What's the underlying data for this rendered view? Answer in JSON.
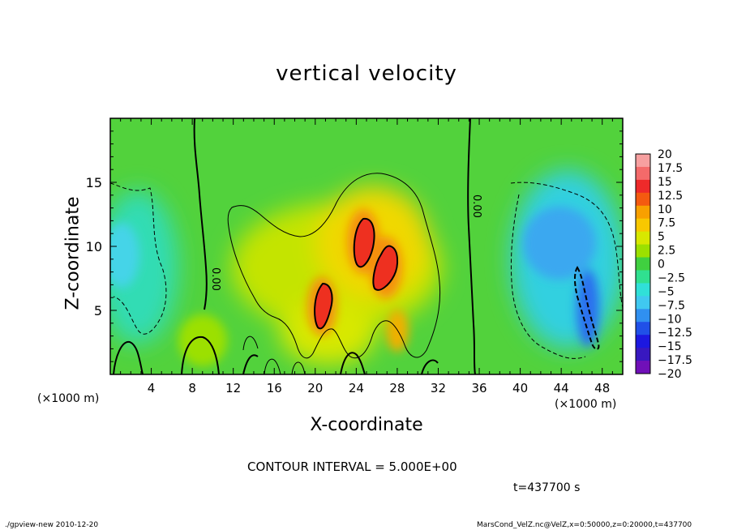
{
  "chart_data": {
    "type": "heatmap",
    "title": "vertical velocity",
    "xlabel": "X-coordinate",
    "ylabel": "Z-coordinate",
    "x_unit": "(×1000 m)",
    "z_unit": "(×1000 m)",
    "xlim": [
      0,
      50
    ],
    "ylim": [
      0,
      20
    ],
    "x_ticks": [
      4,
      8,
      12,
      16,
      20,
      24,
      28,
      32,
      36,
      40,
      44,
      48
    ],
    "y_ticks": [
      5,
      10,
      15
    ],
    "colorbar": {
      "levels": [
        "20",
        "17.5",
        "15",
        "12.5",
        "10",
        "7.5",
        "5",
        "2.5",
        "0",
        "-2.5",
        "-5",
        "-7.5",
        "-10",
        "-12.5",
        "-15",
        "-17.5",
        "-20"
      ],
      "colors": [
        "#f7a0a0",
        "#f46a6a",
        "#ee2a2a",
        "#f45a10",
        "#f8a000",
        "#f8c800",
        "#d8e800",
        "#9ce000",
        "#40d040",
        "#30e090",
        "#30e0d8",
        "#40c8f0",
        "#3090f0",
        "#2050e8",
        "#1c18e0",
        "#3818c0",
        "#7010b8"
      ]
    },
    "contour_interval": "CONTOUR INTERVAL = 5.000E+00",
    "contour_labels": [
      "0.00",
      "0.00"
    ],
    "time": "t=437700 s"
  },
  "footer": {
    "left": "./gpview-new   2010-12-20",
    "right": "MarsCond_VelZ.nc@VelZ,x=0:50000,z=0:20000,t=437700"
  }
}
